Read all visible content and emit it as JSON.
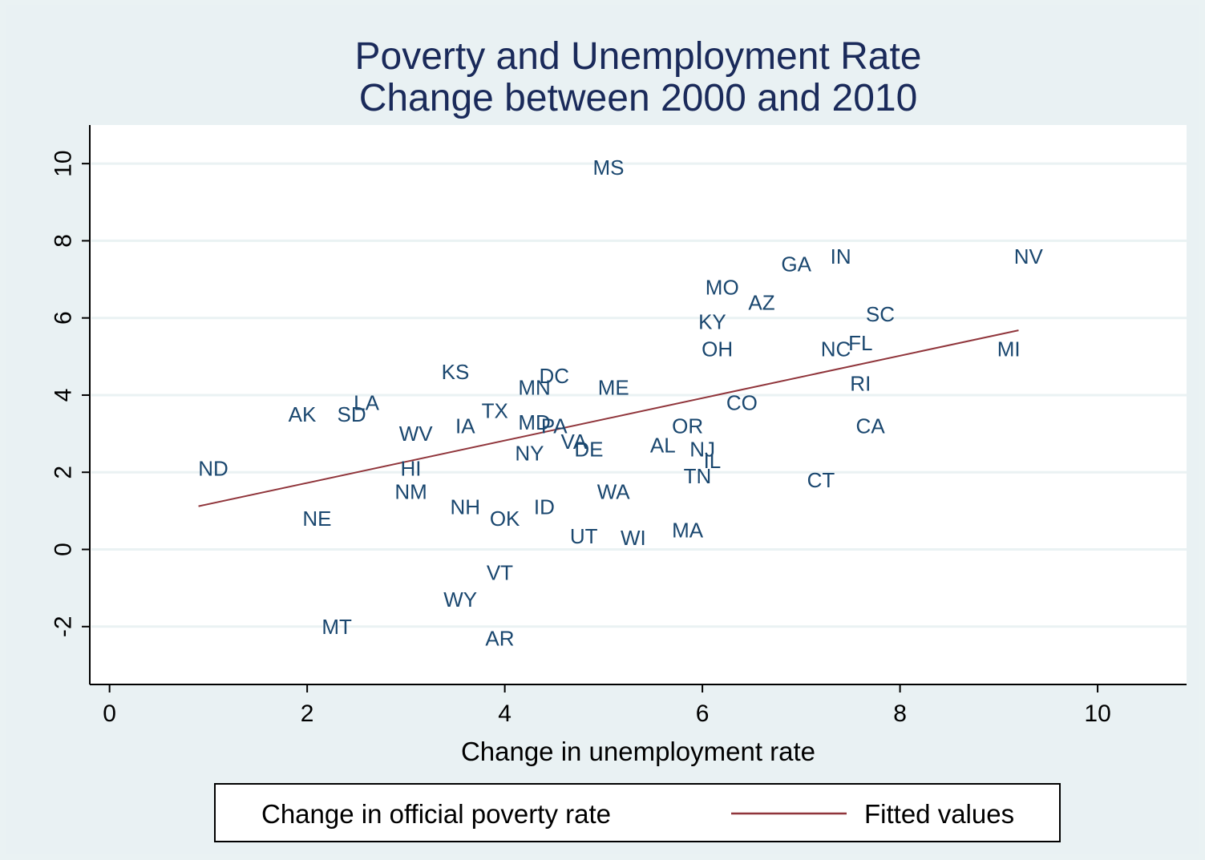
{
  "chart_data": {
    "type": "scatter",
    "title": [
      "Poverty and Unemployment Rate",
      "Change between 2000 and 2010"
    ],
    "xlabel": "Change in unemployment rate",
    "ylabel": "",
    "xlim": [
      -0.2,
      10.9
    ],
    "ylim": [
      -3.5,
      11.0
    ],
    "xticks": [
      0,
      2,
      4,
      6,
      8,
      10
    ],
    "yticks": [
      -2,
      0,
      2,
      4,
      6,
      8,
      10
    ],
    "grid": true,
    "legend_position": "bottom",
    "colors": {
      "marker": "#1a476f",
      "fit": "#90353b",
      "title": "#1a2a5a",
      "plot_bg": "#ffffff",
      "grid": "#eaf2f3"
    },
    "series": [
      {
        "name": "Change in official poverty rate",
        "kind": "marker-labels",
        "points": [
          {
            "label": "MS",
            "x": 5.05,
            "y": 9.9
          },
          {
            "label": "NV",
            "x": 9.3,
            "y": 7.6
          },
          {
            "label": "GA",
            "x": 6.95,
            "y": 7.4
          },
          {
            "label": "IN",
            "x": 7.4,
            "y": 7.6
          },
          {
            "label": "MO",
            "x": 6.2,
            "y": 6.8
          },
          {
            "label": "AZ",
            "x": 6.6,
            "y": 6.4
          },
          {
            "label": "SC",
            "x": 7.8,
            "y": 6.1
          },
          {
            "label": "KY",
            "x": 6.1,
            "y": 5.9
          },
          {
            "label": "MI",
            "x": 9.1,
            "y": 5.2
          },
          {
            "label": "OH",
            "x": 6.15,
            "y": 5.2
          },
          {
            "label": "NC",
            "x": 7.35,
            "y": 5.2
          },
          {
            "label": "FL",
            "x": 7.6,
            "y": 5.35
          },
          {
            "label": "KS",
            "x": 3.5,
            "y": 4.6
          },
          {
            "label": "DC",
            "x": 4.5,
            "y": 4.5
          },
          {
            "label": "MN",
            "x": 4.3,
            "y": 4.2
          },
          {
            "label": "ME",
            "x": 5.1,
            "y": 4.2
          },
          {
            "label": "RI",
            "x": 7.6,
            "y": 4.3
          },
          {
            "label": "LA",
            "x": 2.6,
            "y": 3.8
          },
          {
            "label": "AK",
            "x": 1.95,
            "y": 3.5
          },
          {
            "label": "SD",
            "x": 2.45,
            "y": 3.5
          },
          {
            "label": "CO",
            "x": 6.4,
            "y": 3.8
          },
          {
            "label": "TX",
            "x": 3.9,
            "y": 3.6
          },
          {
            "label": "WV",
            "x": 3.1,
            "y": 3.0
          },
          {
            "label": "IA",
            "x": 3.6,
            "y": 3.2
          },
          {
            "label": "MD",
            "x": 4.3,
            "y": 3.3
          },
          {
            "label": "PA",
            "x": 4.5,
            "y": 3.2
          },
          {
            "label": "OR",
            "x": 5.85,
            "y": 3.2
          },
          {
            "label": "CA",
            "x": 7.7,
            "y": 3.2
          },
          {
            "label": "VA",
            "x": 4.7,
            "y": 2.8
          },
          {
            "label": "DE",
            "x": 4.85,
            "y": 2.6
          },
          {
            "label": "AL",
            "x": 5.6,
            "y": 2.7
          },
          {
            "label": "NJ",
            "x": 6.0,
            "y": 2.6
          },
          {
            "label": "NY",
            "x": 4.25,
            "y": 2.5
          },
          {
            "label": "IL",
            "x": 6.1,
            "y": 2.3
          },
          {
            "label": "ND",
            "x": 1.05,
            "y": 2.1
          },
          {
            "label": "HI",
            "x": 3.05,
            "y": 2.1
          },
          {
            "label": "TN",
            "x": 5.95,
            "y": 1.9
          },
          {
            "label": "CT",
            "x": 7.2,
            "y": 1.8
          },
          {
            "label": "NM",
            "x": 3.05,
            "y": 1.5
          },
          {
            "label": "WA",
            "x": 5.1,
            "y": 1.5
          },
          {
            "label": "NH",
            "x": 3.6,
            "y": 1.1
          },
          {
            "label": "ID",
            "x": 4.4,
            "y": 1.1
          },
          {
            "label": "OK",
            "x": 4.0,
            "y": 0.8
          },
          {
            "label": "NE",
            "x": 2.1,
            "y": 0.8
          },
          {
            "label": "MA",
            "x": 5.85,
            "y": 0.5
          },
          {
            "label": "UT",
            "x": 4.8,
            "y": 0.35
          },
          {
            "label": "WI",
            "x": 5.3,
            "y": 0.3
          },
          {
            "label": "VT",
            "x": 3.95,
            "y": -0.6
          },
          {
            "label": "WY",
            "x": 3.55,
            "y": -1.3
          },
          {
            "label": "MT",
            "x": 2.3,
            "y": -2.0
          },
          {
            "label": "AR",
            "x": 3.95,
            "y": -2.3
          }
        ]
      },
      {
        "name": "Fitted values",
        "kind": "line",
        "x": [
          0.9,
          9.2
        ],
        "y": [
          1.12,
          5.68
        ]
      }
    ]
  }
}
